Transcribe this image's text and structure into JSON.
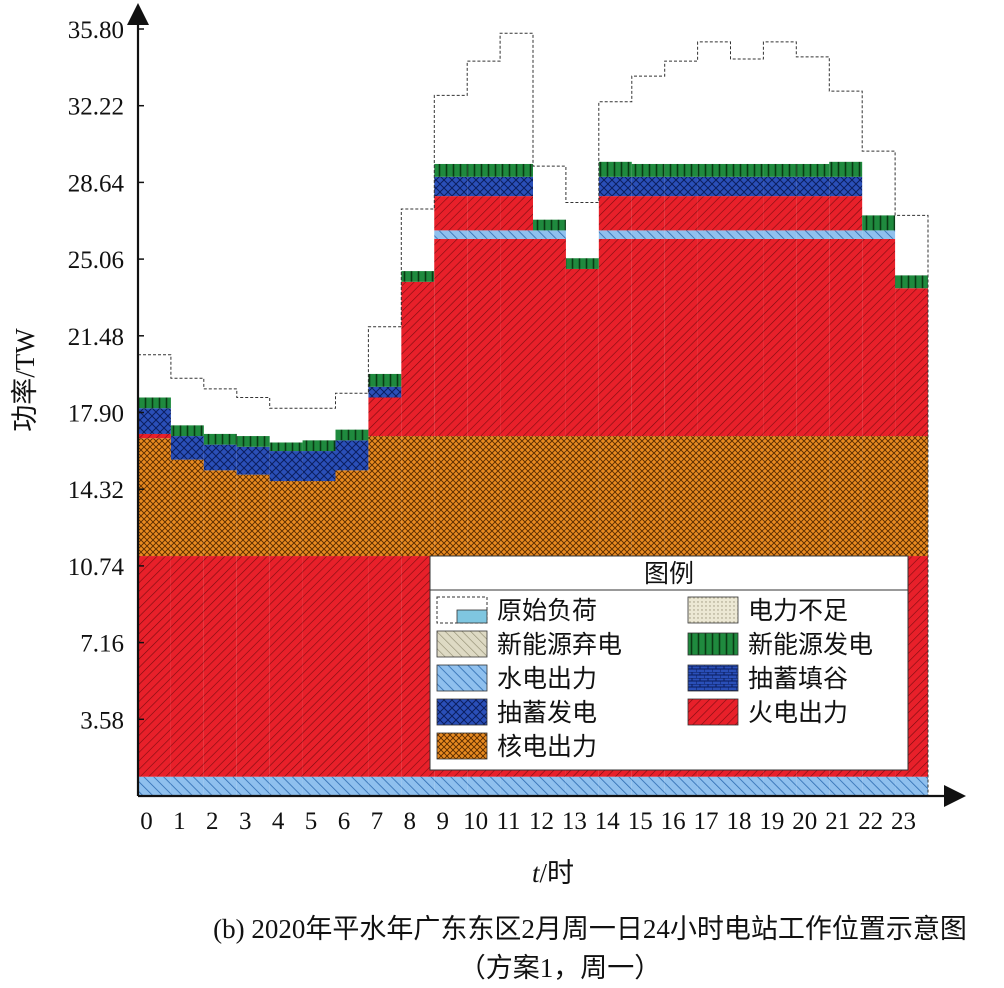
{
  "chart_data": {
    "type": "area",
    "style": "stacked step chart",
    "ylabel": "功率/TW",
    "xlabel_italic": "t",
    "xlabel_rest": "/时",
    "caption_line1": "(b) 2020年平水年广东东区2月周一日24小时电站工作位置示意图",
    "caption_line2": "（方案1，周一）",
    "ylim": [
      0,
      35.8
    ],
    "yticks": [
      "3.58",
      "7.16",
      "10.74",
      "14.32",
      "17.90",
      "21.48",
      "25.06",
      "28.64",
      "32.22",
      "35.80"
    ],
    "ytick_values": [
      3.58,
      7.16,
      10.74,
      14.32,
      17.9,
      21.48,
      25.06,
      28.64,
      32.22,
      35.8
    ],
    "x": [
      "0",
      "1",
      "2",
      "3",
      "4",
      "5",
      "6",
      "7",
      "8",
      "9",
      "10",
      "11",
      "12",
      "13",
      "14",
      "15",
      "16",
      "17",
      "18",
      "19",
      "20",
      "21",
      "22",
      "23"
    ],
    "legend": {
      "title": "图例",
      "items": [
        {
          "label": "原始负荷",
          "key": "load"
        },
        {
          "label": "电力不足",
          "key": "shortage"
        },
        {
          "label": "新能源弃电",
          "key": "curtail"
        },
        {
          "label": "新能源发电",
          "key": "renew"
        },
        {
          "label": "水电出力",
          "key": "hydro"
        },
        {
          "label": "抽蓄填谷",
          "key": "pumpfill"
        },
        {
          "label": "抽蓄发电",
          "key": "pumpgen"
        },
        {
          "label": "火电出力",
          "key": "thermal"
        }
      ]
    },
    "colors": {
      "thermal": "#e8202a",
      "nuclear": "#e88a20",
      "hydro": "#7fb3e6",
      "pumpgen": "#2244aa",
      "pumpfill": "#2244aa",
      "renew": "#1f7a3a",
      "curtail": "#c8c4ae",
      "shortage": "#e6e2cc",
      "load": "#444444"
    },
    "original_load": [
      20.6,
      19.5,
      19.0,
      18.6,
      18.1,
      18.1,
      18.8,
      21.9,
      27.4,
      32.7,
      34.3,
      35.6,
      29.4,
      27.7,
      32.4,
      33.6,
      34.3,
      35.2,
      34.4,
      35.2,
      34.5,
      32.9,
      30.1,
      27.1
    ],
    "series": [
      {
        "name": "水电出力",
        "key": "hydro",
        "values": [
          0.9,
          0.9,
          0.9,
          0.9,
          0.9,
          0.9,
          0.9,
          0.9,
          0.9,
          0.9,
          0.9,
          0.9,
          0.9,
          0.9,
          0.9,
          0.9,
          0.9,
          0.9,
          0.9,
          0.9,
          0.9,
          0.9,
          0.9,
          0.9
        ]
      },
      {
        "name": "火电出力",
        "key": "thermal",
        "values": [
          10.3,
          10.3,
          10.3,
          10.3,
          10.3,
          10.3,
          10.3,
          10.3,
          10.3,
          10.3,
          10.3,
          10.3,
          10.3,
          10.3,
          10.3,
          10.3,
          10.3,
          10.3,
          10.3,
          10.3,
          10.3,
          10.3,
          10.3,
          10.3
        ]
      },
      {
        "name": "核电出力",
        "key": "nuclear",
        "values": [
          5.5,
          4.5,
          4.0,
          3.8,
          3.5,
          3.5,
          4.0,
          5.6,
          5.6,
          5.6,
          5.6,
          5.6,
          5.6,
          5.6,
          5.6,
          5.6,
          5.6,
          5.6,
          5.6,
          5.6,
          5.6,
          5.6,
          5.6,
          5.6
        ]
      },
      {
        "name": "火电出力",
        "key": "thermal",
        "values": [
          0.2,
          0,
          0,
          0,
          0,
          0,
          0,
          1.8,
          7.2,
          9.2,
          9.2,
          9.2,
          9.2,
          7.8,
          9.2,
          9.2,
          9.2,
          9.2,
          9.2,
          9.2,
          9.2,
          9.2,
          9.2,
          6.9
        ]
      },
      {
        "name": "水电出力",
        "key": "hydro",
        "values": [
          0,
          0,
          0,
          0,
          0,
          0,
          0,
          0,
          0,
          0.4,
          0.4,
          0.4,
          0.4,
          0,
          0.4,
          0.4,
          0.4,
          0.4,
          0.4,
          0.4,
          0.4,
          0.4,
          0.4,
          0
        ]
      },
      {
        "name": "火电出力",
        "key": "thermal",
        "values": [
          0,
          0,
          0,
          0,
          0,
          0,
          0,
          0,
          0,
          1.6,
          1.6,
          1.6,
          0,
          0,
          1.6,
          1.6,
          1.6,
          1.6,
          1.6,
          1.6,
          1.6,
          1.6,
          0,
          0
        ]
      },
      {
        "name": "抽蓄发电",
        "key": "pumpgen",
        "values": [
          1.2,
          1.1,
          1.2,
          1.3,
          1.4,
          1.4,
          1.4,
          0.5,
          0,
          0.9,
          0.9,
          0.9,
          0,
          0,
          0.9,
          0.9,
          0.9,
          0.9,
          0.9,
          0.9,
          0.9,
          0.9,
          0,
          0
        ]
      },
      {
        "name": "新能源发电",
        "key": "renew",
        "values": [
          0.5,
          0.5,
          0.5,
          0.5,
          0.4,
          0.5,
          0.5,
          0.6,
          0.5,
          0.6,
          0.6,
          0.6,
          0.5,
          0.5,
          0.7,
          0.6,
          0.6,
          0.6,
          0.6,
          0.6,
          0.6,
          0.7,
          0.7,
          0.6
        ]
      }
    ]
  }
}
